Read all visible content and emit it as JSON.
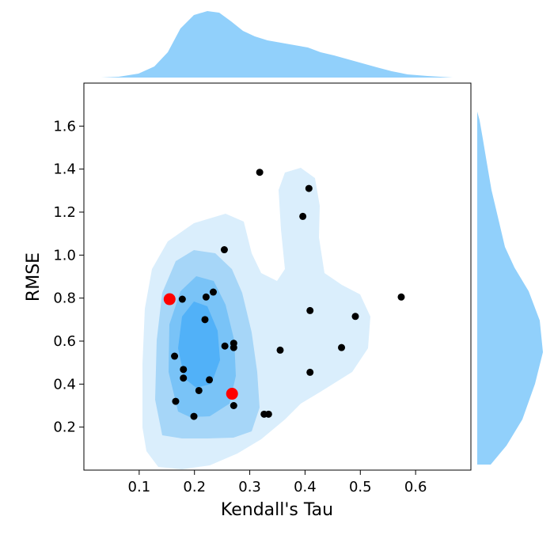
{
  "chart_data": {
    "type": "scatter",
    "subtype": "joint-plot-with-kde",
    "xlabel": "Kendall's Tau",
    "ylabel": "RMSE",
    "xlim": [
      0.0,
      0.7
    ],
    "ylim": [
      0.0,
      1.8
    ],
    "xticks": [
      "0.1",
      "0.2",
      "0.3",
      "0.4",
      "0.5",
      "0.6"
    ],
    "yticks": [
      "0.2",
      "0.4",
      "0.6",
      "0.8",
      "1.0",
      "1.2",
      "1.4",
      "1.6"
    ],
    "grid": false,
    "colors": {
      "kde_light": "#daeefc",
      "kde_mid": "#a6d6f8",
      "kde_dark": "#79c3f7",
      "kde_core": "#51b1f8",
      "marginal": "#91d0fb",
      "points": "#000000",
      "highlight": "#ff0000"
    },
    "points": [
      {
        "x": 0.318,
        "y": 1.385
      },
      {
        "x": 0.407,
        "y": 1.31
      },
      {
        "x": 0.396,
        "y": 1.18
      },
      {
        "x": 0.254,
        "y": 1.025
      },
      {
        "x": 0.178,
        "y": 0.795
      },
      {
        "x": 0.221,
        "y": 0.805
      },
      {
        "x": 0.234,
        "y": 0.828
      },
      {
        "x": 0.574,
        "y": 0.805
      },
      {
        "x": 0.409,
        "y": 0.742
      },
      {
        "x": 0.491,
        "y": 0.715
      },
      {
        "x": 0.219,
        "y": 0.7
      },
      {
        "x": 0.271,
        "y": 0.59
      },
      {
        "x": 0.255,
        "y": 0.577
      },
      {
        "x": 0.271,
        "y": 0.57
      },
      {
        "x": 0.355,
        "y": 0.558
      },
      {
        "x": 0.466,
        "y": 0.57
      },
      {
        "x": 0.164,
        "y": 0.53
      },
      {
        "x": 0.18,
        "y": 0.468
      },
      {
        "x": 0.409,
        "y": 0.455
      },
      {
        "x": 0.18,
        "y": 0.428
      },
      {
        "x": 0.227,
        "y": 0.42
      },
      {
        "x": 0.208,
        "y": 0.37
      },
      {
        "x": 0.166,
        "y": 0.32
      },
      {
        "x": 0.271,
        "y": 0.3
      },
      {
        "x": 0.326,
        "y": 0.26
      },
      {
        "x": 0.334,
        "y": 0.26
      },
      {
        "x": 0.199,
        "y": 0.25
      }
    ],
    "highlighted_points": [
      {
        "x": 0.155,
        "y": 0.795
      },
      {
        "x": 0.268,
        "y": 0.355
      }
    ]
  }
}
